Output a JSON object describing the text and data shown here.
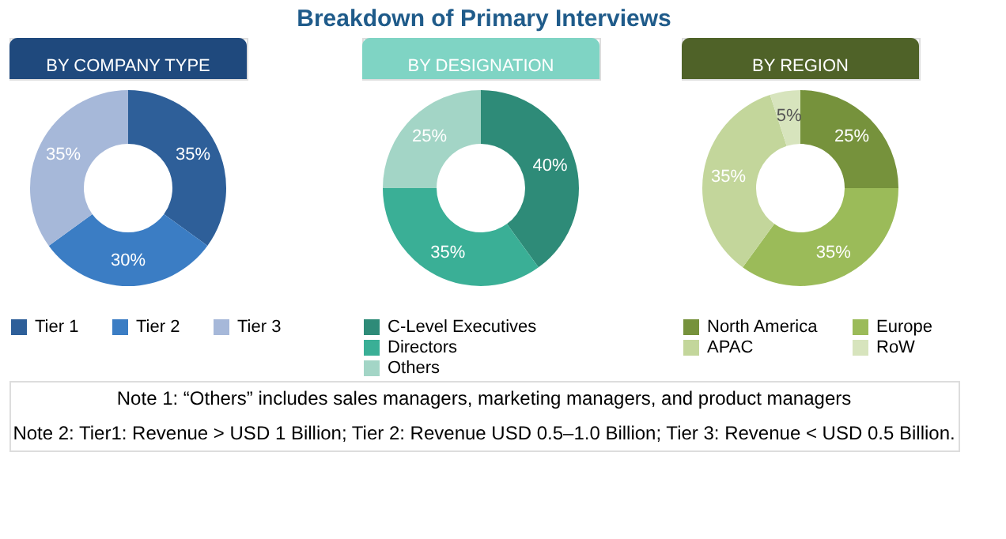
{
  "chart_data": [
    {
      "type": "other",
      "title": "Breakdown of Primary Interviews",
      "annotations": [
        "Note 1: “Others” includes sales managers, marketing managers, and product managers",
        "Note 2: Tier1: Revenue > USD 1 Billion; Tier 2: Revenue USD 0.5–1.0 Billion; Tier 3: Revenue < USD 0.5 Billion."
      ]
    },
    {
      "type": "donut",
      "title": "BY COMPANY TYPE",
      "categories": [
        "Tier 1",
        "Tier 2",
        "Tier 3"
      ],
      "values": [
        35,
        30,
        35
      ],
      "value_labels": [
        "35%",
        "30%",
        "35%"
      ],
      "colors": [
        "#2e5f99",
        "#3b7dc4",
        "#a6b8d9"
      ],
      "legend": "bottom"
    },
    {
      "type": "donut",
      "title": "BY DESIGNATION",
      "categories": [
        "C-Level Executives",
        "Directors",
        "Others"
      ],
      "values": [
        40,
        35,
        25
      ],
      "value_labels": [
        "40%",
        "35%",
        "25%"
      ],
      "colors": [
        "#2e8b78",
        "#3aaf96",
        "#a3d5c6"
      ],
      "legend": "bottom"
    },
    {
      "type": "donut",
      "title": "BY REGION",
      "categories": [
        "North America",
        "Europe",
        "APAC",
        "RoW"
      ],
      "values": [
        25,
        35,
        35,
        5
      ],
      "value_labels": [
        "25%",
        "35%",
        "35%",
        "5%"
      ],
      "colors": [
        "#76923c",
        "#9bbb59",
        "#c3d69b",
        "#d7e4bd"
      ],
      "legend": "bottom"
    }
  ]
}
